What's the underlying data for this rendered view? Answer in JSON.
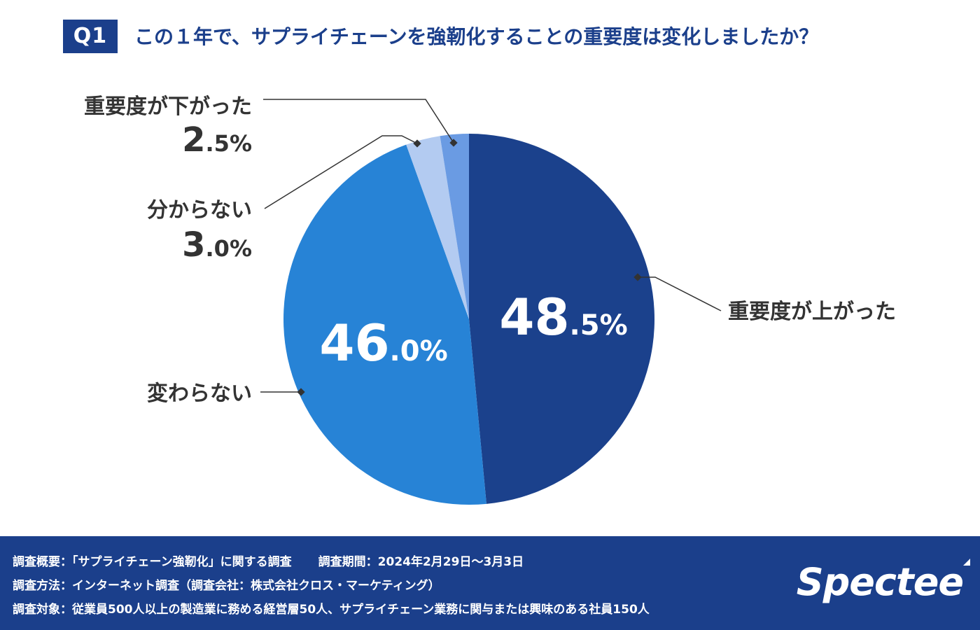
{
  "header": {
    "badge": "Q1",
    "question": "この１年で、サプライチェーンを強靭化することの重要度は変化しましたか？"
  },
  "chart_data": {
    "type": "pie",
    "title": "この１年で、サプライチェーンを強靭化することの重要度は変化しましたか？",
    "slices": [
      {
        "label": "重要度が上がった",
        "value": 48.5,
        "int_part": "48",
        "dec_part": ".5%",
        "color": "#1b418c"
      },
      {
        "label": "変わらない",
        "value": 46.0,
        "int_part": "46",
        "dec_part": ".0%",
        "color": "#2783d6"
      },
      {
        "label": "分からない",
        "value": 3.0,
        "int_part": "3",
        "dec_part": ".0%",
        "color": "#b3cbf1"
      },
      {
        "label": "重要度が下がった",
        "value": 2.5,
        "int_part": "2",
        "dec_part": ".5%",
        "color": "#6a9be3"
      }
    ],
    "start_angle_deg": 0,
    "direction": "clockwise"
  },
  "colors": {
    "brand": "#1b3f8b",
    "label_text": "#333333",
    "leader_line": "#333333"
  },
  "footer": {
    "survey_outline": "調査概要：「サプライチェーン強靭化」に関する調査",
    "survey_period": "調査期間：2024年2月29日～3月3日",
    "survey_method": "調査方法：インターネット調査（調査会社：株式会社クロス・マーケティング）",
    "survey_target": "調査対象：従業員500人以上の製造業に務める経営層50人、サプライチェーン業務に関与または興味のある社員150人",
    "logo_text": "Spectee"
  }
}
